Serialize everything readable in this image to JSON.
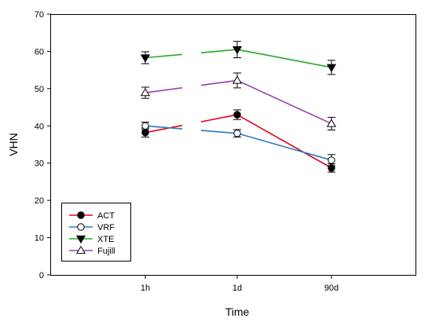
{
  "chart_data": {
    "type": "line",
    "xlabel": "Time",
    "ylabel": "VHN",
    "categories": [
      "1h",
      "1d",
      "90d"
    ],
    "ylim": [
      0,
      70
    ],
    "yticks": [
      0,
      10,
      20,
      30,
      40,
      50,
      60,
      70
    ],
    "grid": false,
    "legend_position": "bottom-left",
    "series": [
      {
        "name": "ACT",
        "color": "#e8001c",
        "marker": "filled-circle",
        "values": [
          38.2,
          43.0,
          28.7
        ],
        "errors": [
          1.2,
          1.3,
          1.1
        ]
      },
      {
        "name": "VRF",
        "color": "#2a7ac2",
        "marker": "open-circle",
        "values": [
          40.0,
          38.0,
          30.8
        ],
        "errors": [
          1.0,
          1.0,
          1.5
        ]
      },
      {
        "name": "XTE",
        "color": "#24a828",
        "marker": "filled-triangle-down",
        "values": [
          58.3,
          60.5,
          55.7
        ],
        "errors": [
          1.6,
          2.2,
          1.9
        ]
      },
      {
        "name": "Fujill",
        "color": "#9b3fb0",
        "marker": "open-triangle-up",
        "values": [
          48.9,
          52.2,
          40.6
        ],
        "errors": [
          1.5,
          2.0,
          1.7
        ]
      }
    ]
  }
}
